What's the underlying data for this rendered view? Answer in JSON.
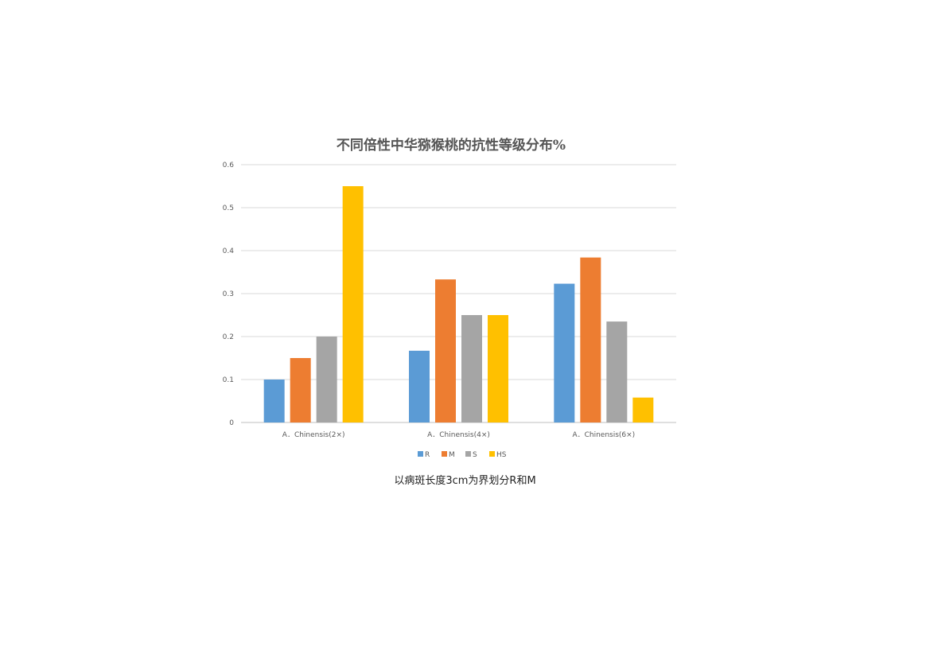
{
  "chart_data": {
    "type": "bar",
    "title": "不同倍性中华猕猴桃的抗性等级分布%",
    "categories": [
      "A．Chinensis(2×)",
      "A．Chinensis(4×)",
      "A．Chinensis(6×)"
    ],
    "series": [
      {
        "name": "R",
        "color": "#5B9BD5",
        "values": [
          0.1,
          0.167,
          0.323
        ]
      },
      {
        "name": "M",
        "color": "#ED7D31",
        "values": [
          0.15,
          0.333,
          0.384
        ]
      },
      {
        "name": "S",
        "color": "#A5A5A5",
        "values": [
          0.2,
          0.25,
          0.235
        ]
      },
      {
        "name": "HS",
        "color": "#FFC000",
        "values": [
          0.55,
          0.25,
          0.058
        ]
      }
    ],
    "ylim": [
      0,
      0.6
    ],
    "yticks": [
      "0",
      "0.1",
      "0.2",
      "0.3",
      "0.4",
      "0.5",
      "0.6"
    ],
    "grid": true,
    "legend_position": "bottom"
  },
  "caption": "以病斑长度3cm为界划分R和M"
}
